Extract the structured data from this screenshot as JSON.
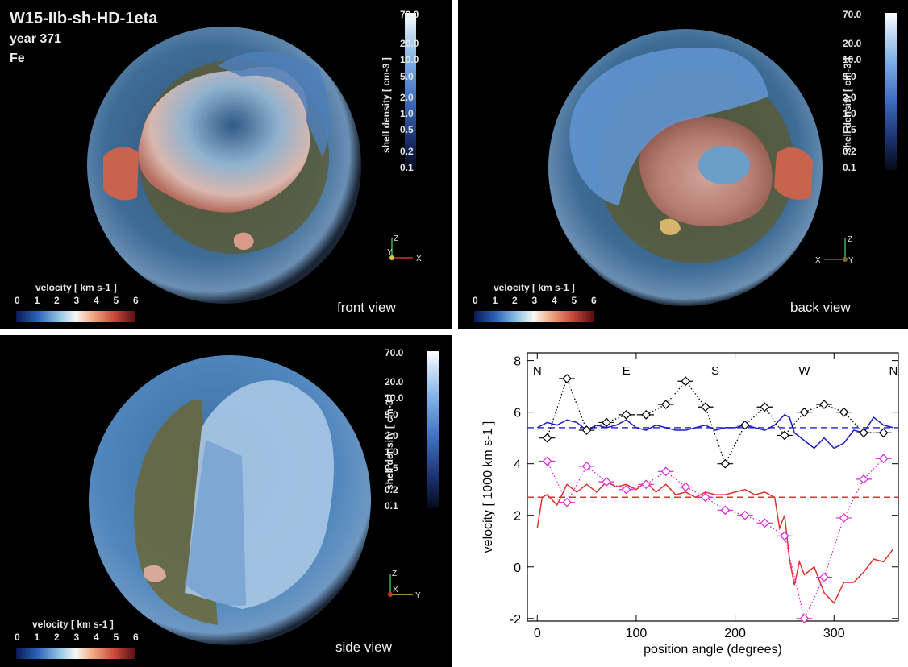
{
  "panel_front": {
    "title": "W15-IIb-sh-HD-1eta",
    "year": "year 371",
    "element": "Fe",
    "view_label": "front view",
    "axis_labels": {
      "z": "Z",
      "y": "Y",
      "x": "X"
    }
  },
  "panel_back": {
    "view_label": "back view",
    "axis_labels": {
      "z": "Z",
      "x": "X",
      "y": "Y"
    }
  },
  "panel_side": {
    "view_label": "side view",
    "axis_labels": {
      "z": "Z",
      "x": "X",
      "y": "Y"
    }
  },
  "shell_colorbar": {
    "title": "shell density  [ cm-3 ]",
    "ticks": [
      "70.0",
      "20.0",
      "10.0",
      "5.0",
      "2.0",
      "1.0",
      "0.5",
      "0.2",
      "0.1"
    ]
  },
  "velocity_colorbar": {
    "title": "velocity [ km s-1 ]",
    "ticks": [
      "0",
      "1",
      "2",
      "3",
      "4",
      "5",
      "6"
    ]
  },
  "chart_data": {
    "type": "line",
    "xlabel": "position angle (degrees)",
    "ylabel": "velocity [ 1000 km s-1 ]",
    "xlim": [
      -10,
      365
    ],
    "ylim": [
      -2.1,
      8.3
    ],
    "xticks": [
      0,
      100,
      200,
      300
    ],
    "yticks": [
      -2,
      0,
      2,
      4,
      6,
      8
    ],
    "direction_labels": [
      {
        "label": "N",
        "x": 0
      },
      {
        "label": "E",
        "x": 90
      },
      {
        "label": "S",
        "x": 180
      },
      {
        "label": "W",
        "x": 270
      },
      {
        "label": "N",
        "x": 360
      }
    ],
    "hlines": [
      {
        "y": 5.4,
        "color": "#3333cc",
        "style": "dashed"
      },
      {
        "y": 2.7,
        "color": "#e03030",
        "style": "dashed"
      }
    ],
    "series": [
      {
        "color": "#1a1ad0",
        "style": "solid",
        "x": [
          0,
          10,
          20,
          30,
          40,
          50,
          60,
          70,
          80,
          90,
          100,
          110,
          120,
          130,
          140,
          150,
          160,
          170,
          180,
          190,
          200,
          210,
          220,
          230,
          240,
          250,
          255,
          260,
          270,
          280,
          290,
          300,
          310,
          320,
          330,
          340,
          350,
          360
        ],
        "y": [
          5.4,
          5.6,
          5.5,
          5.7,
          5.6,
          5.3,
          5.5,
          5.4,
          5.5,
          5.7,
          5.4,
          5.3,
          5.5,
          5.4,
          5.3,
          5.3,
          5.4,
          5.5,
          5.3,
          5.4,
          5.4,
          5.5,
          5.4,
          5.3,
          5.5,
          5.9,
          5.8,
          5.2,
          4.9,
          4.6,
          5.0,
          4.6,
          4.8,
          5.3,
          5.2,
          5.8,
          5.5,
          5.4
        ]
      },
      {
        "color": "#e03030",
        "style": "solid",
        "x": [
          0,
          5,
          10,
          20,
          30,
          40,
          50,
          60,
          70,
          80,
          90,
          100,
          110,
          120,
          130,
          140,
          150,
          160,
          170,
          180,
          190,
          200,
          210,
          220,
          230,
          240,
          245,
          250,
          255,
          260,
          265,
          270,
          280,
          290,
          300,
          310,
          320,
          330,
          340,
          350,
          360
        ],
        "y": [
          1.5,
          2.7,
          2.8,
          2.4,
          3.2,
          2.9,
          3.2,
          2.9,
          3.3,
          3.1,
          3.2,
          3.0,
          3.3,
          2.9,
          3.2,
          2.8,
          2.9,
          2.7,
          2.9,
          2.8,
          2.8,
          2.9,
          3.0,
          2.8,
          2.9,
          2.7,
          1.5,
          2.0,
          0.3,
          -0.7,
          0.2,
          -0.3,
          0.0,
          -1.0,
          -1.4,
          -0.6,
          -0.6,
          -0.2,
          0.3,
          0.2,
          0.7
        ]
      },
      {
        "color": "#000000",
        "style": "dotted",
        "marker": "diamond",
        "xerr": 8,
        "x": [
          10,
          30,
          50,
          70,
          90,
          110,
          130,
          150,
          170,
          190,
          210,
          230,
          250,
          270,
          290,
          310,
          330,
          350
        ],
        "y": [
          5.0,
          7.3,
          5.3,
          5.6,
          5.9,
          5.9,
          6.3,
          7.2,
          6.2,
          4.0,
          5.5,
          6.2,
          5.1,
          6.0,
          6.3,
          6.0,
          5.2,
          5.2
        ]
      },
      {
        "color": "#e020e0",
        "style": "dotted",
        "marker": "diamond",
        "xerr": 8,
        "x": [
          10,
          30,
          50,
          70,
          90,
          110,
          130,
          150,
          170,
          190,
          210,
          230,
          250,
          270,
          290,
          310,
          330,
          350
        ],
        "y": [
          4.1,
          2.5,
          3.9,
          3.3,
          3.0,
          3.2,
          3.7,
          3.1,
          2.7,
          2.2,
          2.0,
          1.7,
          1.2,
          -2.0,
          -0.4,
          1.9,
          3.4,
          4.2
        ]
      }
    ]
  }
}
